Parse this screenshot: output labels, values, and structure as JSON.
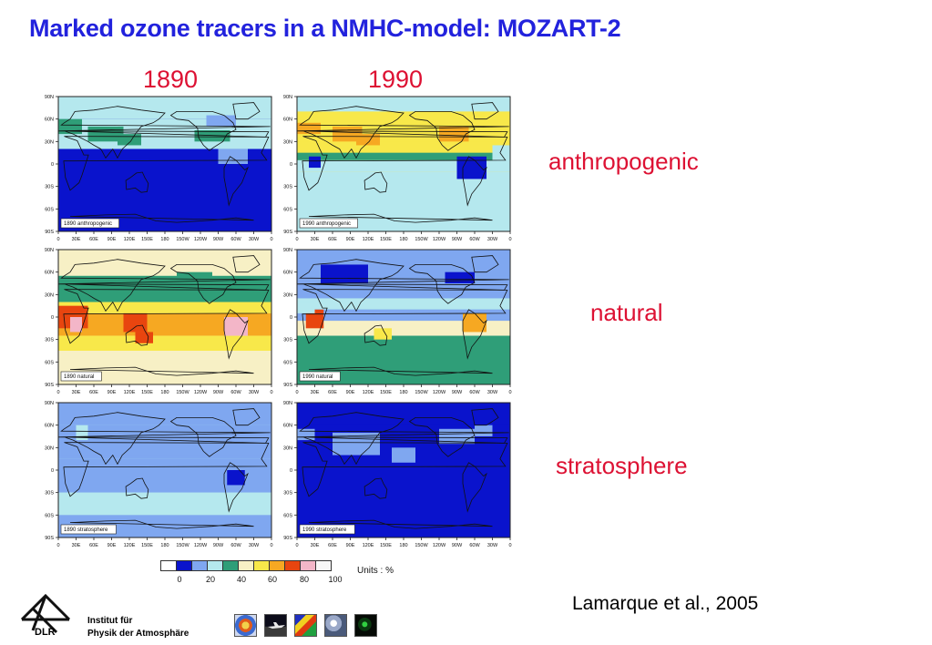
{
  "slide": {
    "title": "Marked ozone tracers in a NMHC-model: MOZART-2",
    "year_1890": "1890",
    "year_1990": "1990",
    "rows": {
      "anthropogenic": "anthropogenic",
      "natural": "natural",
      "stratosphere": "stratosphere"
    },
    "citation": "Lamarque et al., 2005",
    "footer": {
      "logo_text": "DLR",
      "institute_line1": "Institut für",
      "institute_line2": "Physik der Atmosphäre"
    }
  },
  "maps": {
    "panel_labels": {
      "a1890": "1890 anthropogenic",
      "a1990": "1990 anthropogenic",
      "n1890": "1890 natural",
      "n1990": "1990 natural",
      "s1890": "1890 stratosphere",
      "s1990": "1990 stratosphere"
    },
    "lat_labels": [
      "90N",
      "60N",
      "30N",
      "0",
      "30S",
      "60S",
      "90S"
    ],
    "lon_labels": [
      "0",
      "30E",
      "60E",
      "90E",
      "120E",
      "150E",
      "180",
      "150W",
      "120W",
      "90W",
      "60W",
      "30W",
      "0"
    ]
  },
  "colorbar": {
    "ticks": [
      "0",
      "20",
      "40",
      "60",
      "80",
      "100"
    ],
    "units": "Units : %",
    "colors": [
      "#ffffff",
      "#0a13cc",
      "#7fa7f0",
      "#b5e8ee",
      "#2f9e78",
      "#f7f0c5",
      "#f8e84a",
      "#f6a822",
      "#e8450f",
      "#f3b6c8",
      "#f7f7f7"
    ]
  },
  "colors": {
    "title": "#2222dd",
    "labels": "#dd1133"
  }
}
